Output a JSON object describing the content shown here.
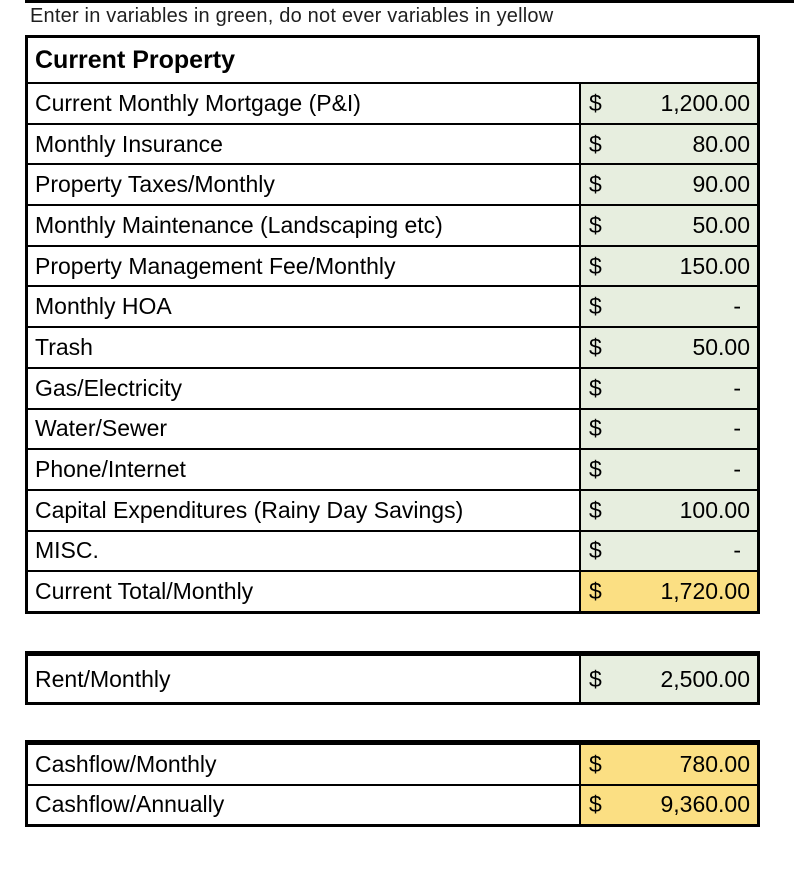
{
  "note": "Enter in variables in green, do not ever variables in yellow",
  "currency_symbol": "$",
  "colors": {
    "green_input_fill": "#e7eedf",
    "yellow_output_fill": "#fbdf83",
    "border": "#000000",
    "background": "#ffffff"
  },
  "main_table": {
    "header": "Current Property",
    "rows": [
      {
        "label": "Current Monthly Mortgage (P&I)",
        "amount": "1,200.00",
        "fill": "green"
      },
      {
        "label": "Monthly Insurance",
        "amount": "80.00",
        "fill": "green"
      },
      {
        "label": "Property Taxes/Monthly",
        "amount": "90.00",
        "fill": "green"
      },
      {
        "label": "Monthly Maintenance (Landscaping etc)",
        "amount": "50.00",
        "fill": "green"
      },
      {
        "label": "Property Management Fee/Monthly",
        "amount": "150.00",
        "fill": "green"
      },
      {
        "label": "Monthly HOA",
        "amount": "-",
        "fill": "green"
      },
      {
        "label": "Trash",
        "amount": "50.00",
        "fill": "green"
      },
      {
        "label": "Gas/Electricity",
        "amount": "-",
        "fill": "green"
      },
      {
        "label": "Water/Sewer",
        "amount": "-",
        "fill": "green"
      },
      {
        "label": "Phone/Internet",
        "amount": "-",
        "fill": "green"
      },
      {
        "label": "Capital Expenditures (Rainy Day Savings)",
        "amount": "100.00",
        "fill": "green"
      },
      {
        "label": "MISC.",
        "amount": "-",
        "fill": "green"
      },
      {
        "label": "Current Total/Monthly",
        "amount": "1,720.00",
        "fill": "yellow"
      }
    ]
  },
  "rent_table": {
    "rows": [
      {
        "label": "Rent/Monthly",
        "amount": "2,500.00",
        "fill": "green"
      }
    ]
  },
  "cashflow_table": {
    "rows": [
      {
        "label": "Cashflow/Monthly",
        "amount": "780.00",
        "fill": "yellow"
      },
      {
        "label": "Cashflow/Annually",
        "amount": "9,360.00",
        "fill": "yellow"
      }
    ]
  }
}
